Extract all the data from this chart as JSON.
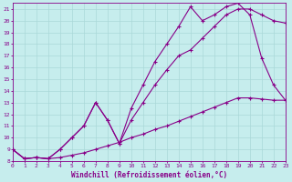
{
  "xlabel": "Windchill (Refroidissement éolien,°C)",
  "xlim": [
    0,
    23
  ],
  "ylim": [
    8,
    21.5
  ],
  "xticks": [
    0,
    1,
    2,
    3,
    4,
    5,
    6,
    7,
    8,
    9,
    10,
    11,
    12,
    13,
    14,
    15,
    16,
    17,
    18,
    19,
    20,
    21,
    22,
    23
  ],
  "yticks": [
    8,
    9,
    10,
    11,
    12,
    13,
    14,
    15,
    16,
    17,
    18,
    19,
    20,
    21
  ],
  "background_color": "#c6eded",
  "line_color": "#880088",
  "grid_color": "#aad8d8",
  "line1_x": [
    0,
    1,
    2,
    3,
    4,
    5,
    6,
    7,
    8,
    9,
    10,
    11,
    12,
    13,
    14,
    15,
    16,
    17,
    18,
    19,
    20,
    21,
    22,
    23
  ],
  "line1_y": [
    9.0,
    8.2,
    8.3,
    8.2,
    8.3,
    8.5,
    8.7,
    9.0,
    9.3,
    9.6,
    10.0,
    10.3,
    10.7,
    11.0,
    11.4,
    11.8,
    12.2,
    12.6,
    13.0,
    13.4,
    13.4,
    13.3,
    13.2,
    13.2
  ],
  "line2_x": [
    0,
    1,
    2,
    3,
    4,
    5,
    6,
    7,
    8,
    9,
    10,
    11,
    12,
    13,
    14,
    15,
    16,
    17,
    18,
    19,
    20,
    21,
    22,
    23
  ],
  "line2_y": [
    9.0,
    8.2,
    8.3,
    8.2,
    9.0,
    10.0,
    11.0,
    13.0,
    11.5,
    9.5,
    11.5,
    13.0,
    14.5,
    15.8,
    17.0,
    17.5,
    18.5,
    19.5,
    20.5,
    21.0,
    21.0,
    20.5,
    20.0,
    19.8
  ],
  "line3_x": [
    0,
    1,
    2,
    3,
    4,
    5,
    6,
    7,
    8,
    9,
    10,
    11,
    12,
    13,
    14,
    15,
    16,
    17,
    18,
    19,
    20,
    21,
    22,
    23
  ],
  "line3_y": [
    9.0,
    8.2,
    8.3,
    8.2,
    9.0,
    10.0,
    11.0,
    13.0,
    11.5,
    9.5,
    12.5,
    14.5,
    16.5,
    18.0,
    19.5,
    21.2,
    20.0,
    20.5,
    21.2,
    21.5,
    20.5,
    16.8,
    14.5,
    13.2
  ],
  "marker": "+",
  "markersize": 3,
  "linewidth": 0.8,
  "tick_fontsize": 4.5,
  "label_fontsize": 5.5
}
